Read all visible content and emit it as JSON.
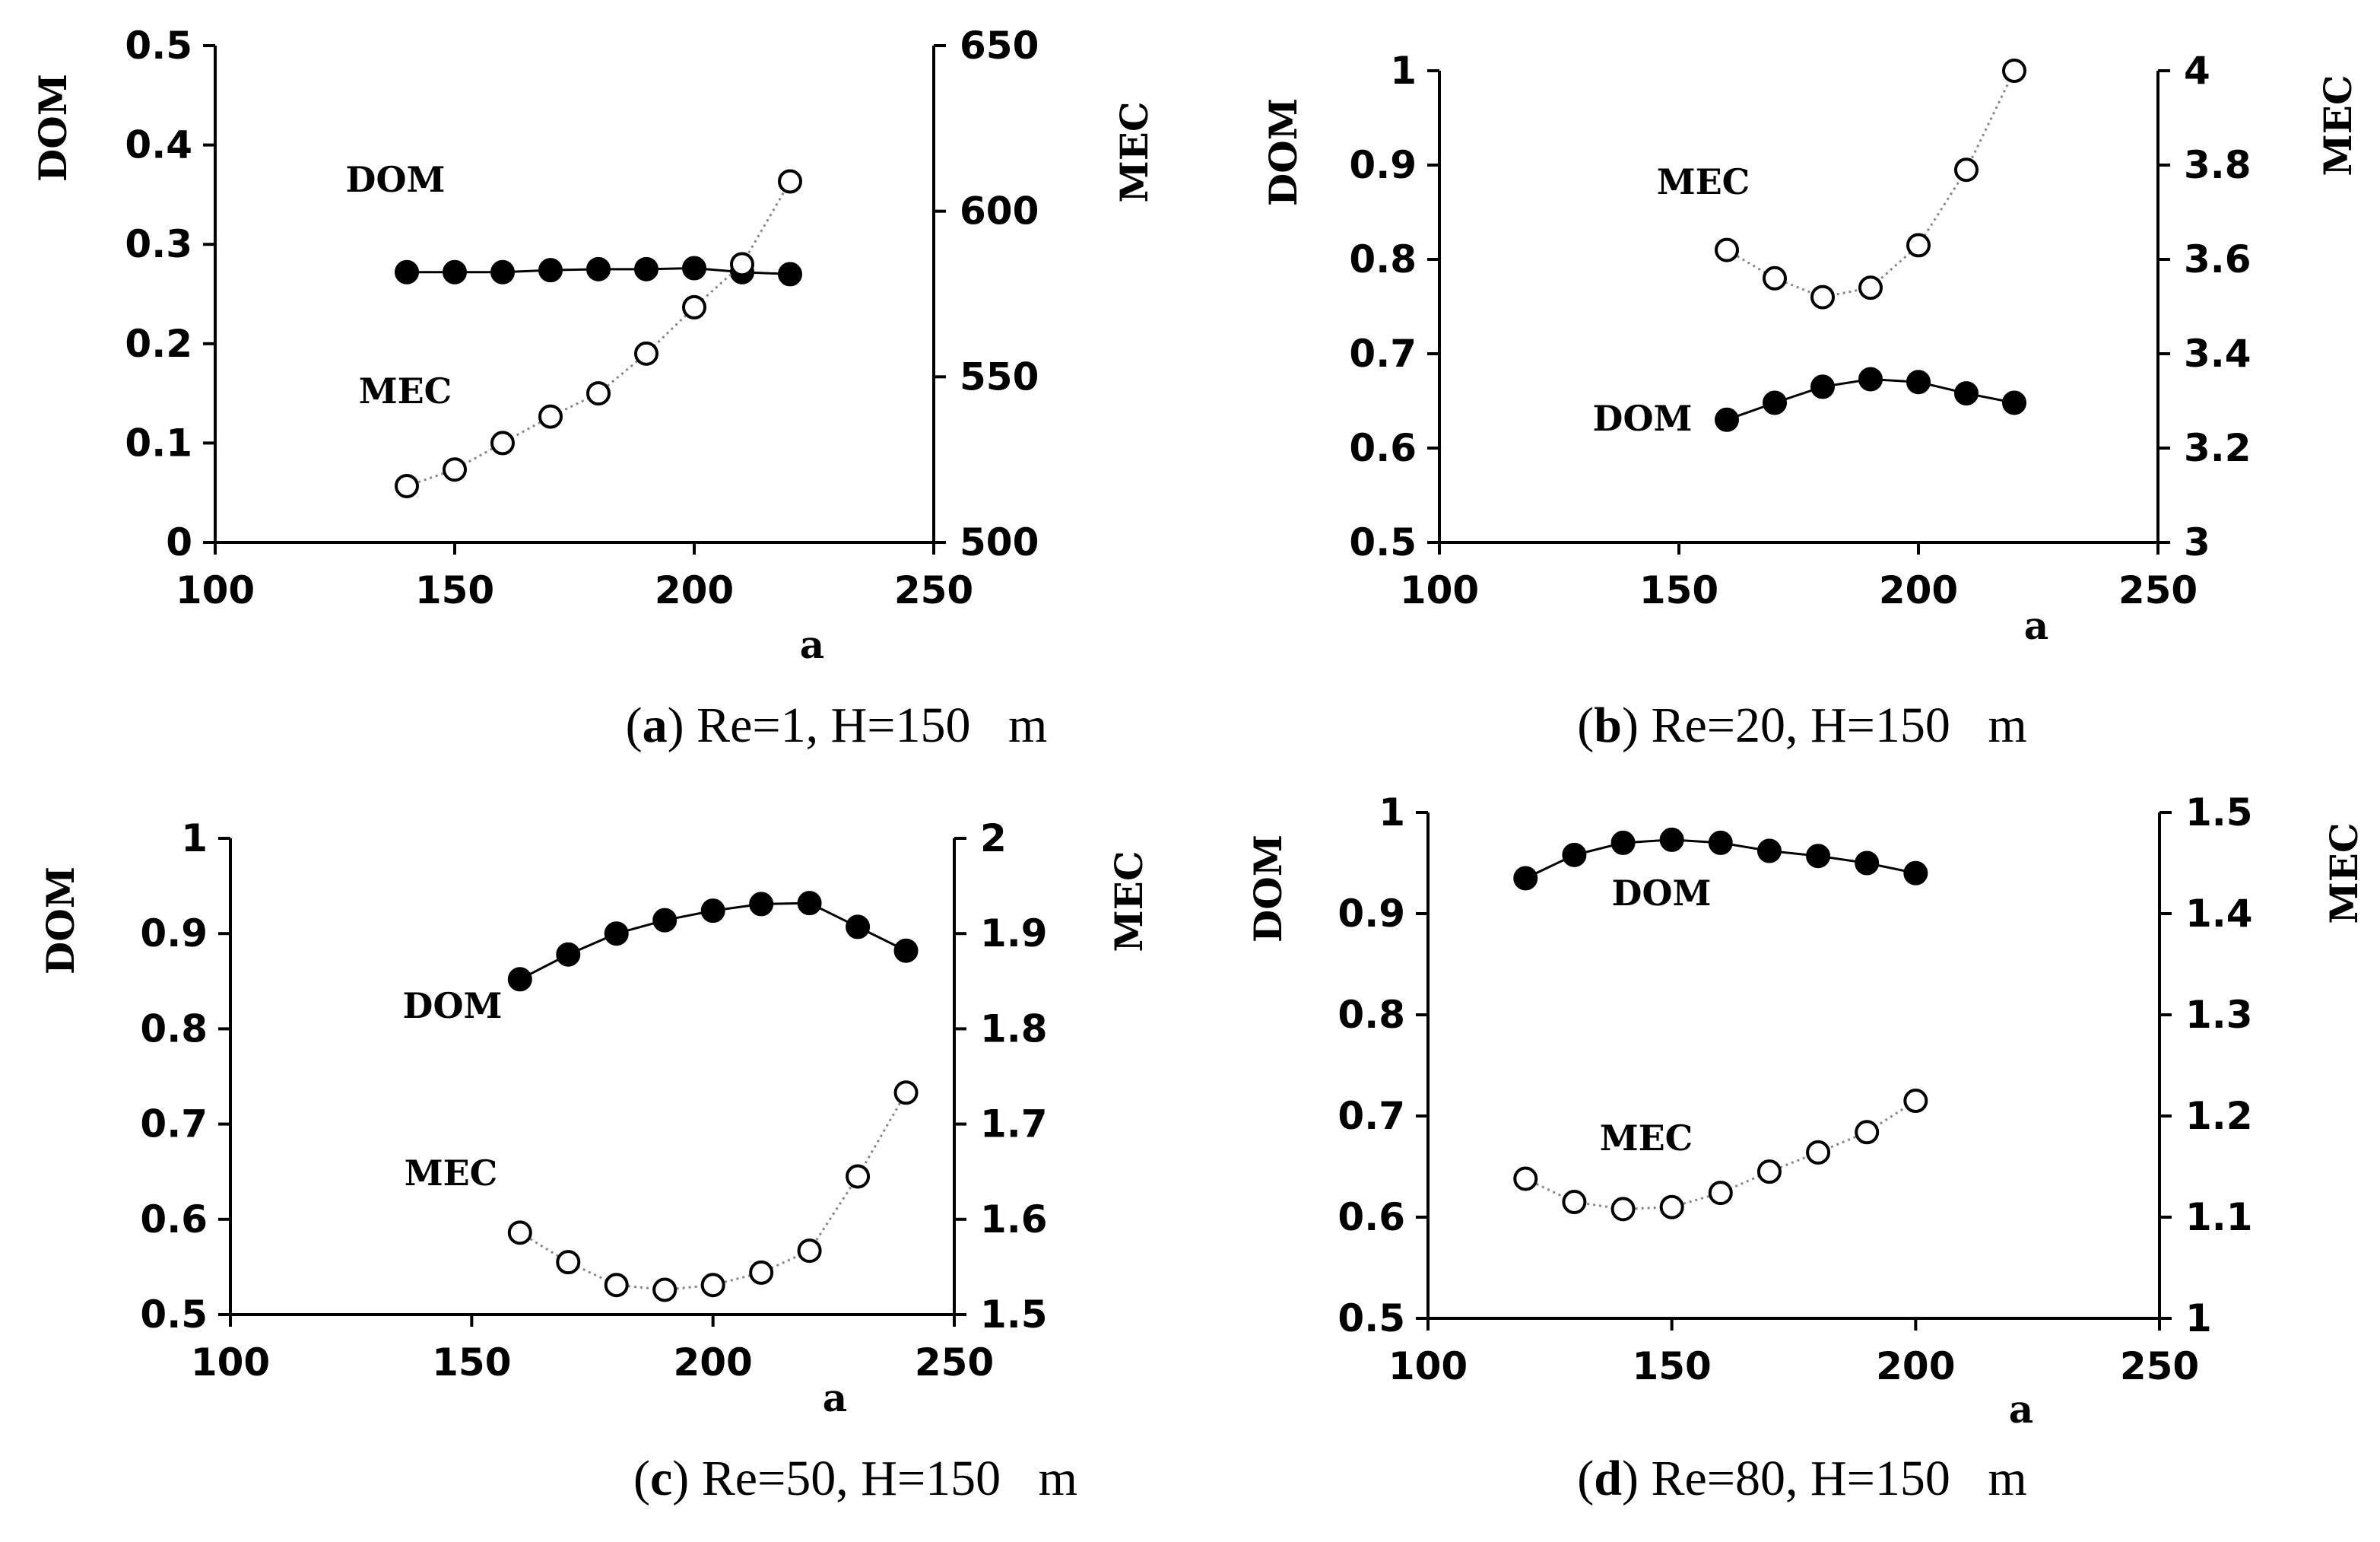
{
  "chart_data": [
    {
      "type": "scatter",
      "panel_letter": "a",
      "caption_text": " Re=1, H=150   m",
      "xlabel": "a",
      "ylabel": "DOM",
      "y2label": "MEC",
      "xlim": [
        100,
        250
      ],
      "ylim": [
        0,
        0.5
      ],
      "y2lim": [
        500,
        650
      ],
      "xticks": [
        "100",
        "150",
        "200",
        "250"
      ],
      "yticks": [
        "0",
        "0.1",
        "0.2",
        "0.3",
        "0.4",
        "0.5"
      ],
      "y2ticks": [
        "500",
        "550",
        "600",
        "650"
      ],
      "grid": false,
      "series": [
        {
          "label": "DOM",
          "axis": "left",
          "marker": "filled",
          "line": "solid",
          "x": [
            140,
            150,
            160,
            170,
            180,
            190,
            200,
            210,
            220
          ],
          "y": [
            0.272,
            0.272,
            0.272,
            0.274,
            0.275,
            0.275,
            0.276,
            0.272,
            0.27
          ]
        },
        {
          "label": "MEC",
          "axis": "right",
          "marker": "open",
          "line": "dotted",
          "x": [
            140,
            150,
            160,
            170,
            180,
            190,
            200,
            210,
            220
          ],
          "y": [
            517,
            522,
            530,
            538,
            545,
            557,
            571,
            584,
            609
          ]
        }
      ]
    },
    {
      "type": "scatter",
      "panel_letter": "b",
      "caption_text": " Re=20, H=150   m",
      "xlabel": "a",
      "ylabel": "DOM",
      "y2label": "MEC",
      "xlim": [
        100,
        250
      ],
      "ylim": [
        0.5,
        1
      ],
      "y2lim": [
        3,
        4
      ],
      "xticks": [
        "100",
        "150",
        "200",
        "250"
      ],
      "yticks": [
        "0.5",
        "0.6",
        "0.7",
        "0.8",
        "0.9",
        "1"
      ],
      "y2ticks": [
        "3",
        "3.2",
        "3.4",
        "3.6",
        "3.8",
        "4"
      ],
      "grid": false,
      "series": [
        {
          "label": "DOM",
          "axis": "left",
          "marker": "filled",
          "line": "solid",
          "x": [
            160,
            170,
            180,
            190,
            200,
            210,
            220
          ],
          "y": [
            0.63,
            0.648,
            0.665,
            0.673,
            0.67,
            0.658,
            0.648
          ]
        },
        {
          "label": "MEC",
          "axis": "right",
          "marker": "open",
          "line": "dotted",
          "x": [
            160,
            170,
            180,
            190,
            200,
            210,
            220
          ],
          "y": [
            3.62,
            3.56,
            3.52,
            3.54,
            3.63,
            3.79,
            4.0
          ]
        }
      ]
    },
    {
      "type": "scatter",
      "panel_letter": "c",
      "caption_text": " Re=50, H=150   m",
      "xlabel": "a",
      "ylabel": "DOM",
      "y2label": "MEC",
      "xlim": [
        100,
        250
      ],
      "ylim": [
        0.5,
        1
      ],
      "y2lim": [
        1.5,
        2
      ],
      "xticks": [
        "100",
        "150",
        "200",
        "250"
      ],
      "yticks": [
        "0.5",
        "0.6",
        "0.7",
        "0.8",
        "0.9",
        "1"
      ],
      "y2ticks": [
        "1.5",
        "1.6",
        "1.7",
        "1.8",
        "1.9",
        "2"
      ],
      "grid": false,
      "series": [
        {
          "label": "DOM",
          "axis": "left",
          "marker": "filled",
          "line": "solid",
          "x": [
            160,
            170,
            180,
            190,
            200,
            210,
            220,
            230,
            240
          ],
          "y": [
            0.852,
            0.878,
            0.9,
            0.914,
            0.924,
            0.931,
            0.932,
            0.907,
            0.882
          ]
        },
        {
          "label": "MEC",
          "axis": "right",
          "marker": "open",
          "line": "dotted",
          "x": [
            160,
            170,
            180,
            190,
            200,
            210,
            220,
            230,
            240
          ],
          "y": [
            1.586,
            1.555,
            1.531,
            1.526,
            1.531,
            1.544,
            1.567,
            1.645,
            1.733
          ]
        }
      ]
    },
    {
      "type": "scatter",
      "panel_letter": "d",
      "caption_text": " Re=80, H=150   m",
      "xlabel": "a",
      "ylabel": "DOM",
      "y2label": "MEC",
      "xlim": [
        100,
        250
      ],
      "ylim": [
        0.5,
        1
      ],
      "y2lim": [
        1,
        1.5
      ],
      "xticks": [
        "100",
        "150",
        "200",
        "250"
      ],
      "yticks": [
        "0.5",
        "0.6",
        "0.7",
        "0.8",
        "0.9",
        "1"
      ],
      "y2ticks": [
        "1",
        "1.1",
        "1.2",
        "1.3",
        "1.4",
        "1.5"
      ],
      "grid": false,
      "series": [
        {
          "label": "DOM",
          "axis": "left",
          "marker": "filled",
          "line": "solid",
          "x": [
            120,
            130,
            140,
            150,
            160,
            170,
            180,
            190,
            200
          ],
          "y": [
            0.935,
            0.958,
            0.97,
            0.973,
            0.97,
            0.962,
            0.957,
            0.95,
            0.94
          ]
        },
        {
          "label": "MEC",
          "axis": "right",
          "marker": "open",
          "line": "dotted",
          "x": [
            120,
            130,
            140,
            150,
            160,
            170,
            180,
            190,
            200
          ],
          "y": [
            1.138,
            1.115,
            1.108,
            1.11,
            1.124,
            1.145,
            1.164,
            1.184,
            1.215
          ]
        }
      ]
    }
  ]
}
